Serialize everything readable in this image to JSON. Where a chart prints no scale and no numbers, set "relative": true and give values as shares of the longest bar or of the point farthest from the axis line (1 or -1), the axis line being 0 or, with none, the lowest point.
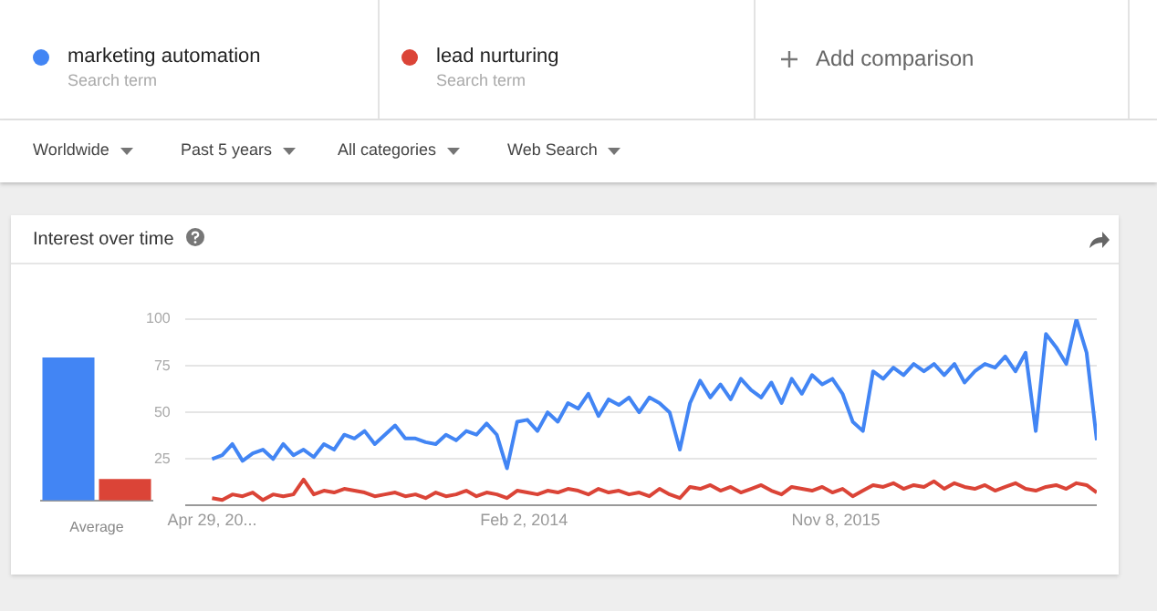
{
  "chart_data": [
    {
      "type": "other",
      "annotations": [
        "Search term",
        "Search term",
        "Add comparison",
        "Worldwide",
        "Past 5 years",
        "All categories",
        "Web Search"
      ]
    },
    {
      "type": "bar",
      "xlabel": "Average",
      "categories": [
        null,
        null
      ],
      "values": [
        1,
        0.15
      ],
      "colors": [
        "#4285f4",
        "#db4437"
      ],
      "relative": true
    },
    {
      "type": "line",
      "title": "Interest over time",
      "legend": "top",
      "grid": "y",
      "marker": "none",
      "line_style": "solid",
      "x": [
        "2012-04-29",
        "2012-05-20",
        "2012-06-10",
        "2012-07-01",
        "2012-07-22",
        "2012-08-12",
        "2012-09-02",
        "2012-09-23",
        "2012-10-14",
        "2012-11-04",
        "2012-11-25",
        "2012-12-16",
        "2013-01-06",
        "2013-01-27",
        "2013-02-17",
        "2013-03-10",
        "2013-03-31",
        "2013-04-21",
        "2013-05-12",
        "2013-06-02",
        "2013-06-23",
        "2013-07-14",
        "2013-08-04",
        "2013-08-25",
        "2013-09-15",
        "2013-10-06",
        "2013-10-27",
        "2013-11-17",
        "2013-12-08",
        "2013-12-29",
        "2014-01-19",
        "2014-02-09",
        "2014-03-02",
        "2014-03-23",
        "2014-04-13",
        "2014-05-04",
        "2014-05-25",
        "2014-06-15",
        "2014-07-06",
        "2014-07-27",
        "2014-08-17",
        "2014-09-07",
        "2014-09-28",
        "2014-10-19",
        "2014-11-09",
        "2014-11-30",
        "2014-12-21",
        "2015-01-11",
        "2015-02-01",
        "2015-02-22",
        "2015-03-15",
        "2015-04-05",
        "2015-04-26",
        "2015-05-17",
        "2015-06-07",
        "2015-06-28",
        "2015-07-19",
        "2015-08-09",
        "2015-08-30",
        "2015-09-20",
        "2015-10-11",
        "2015-11-01",
        "2015-11-22",
        "2015-12-13",
        "2016-01-03",
        "2016-01-24",
        "2016-02-14",
        "2016-03-06",
        "2016-03-27",
        "2016-04-17",
        "2016-05-08",
        "2016-05-29",
        "2016-06-19",
        "2016-07-10",
        "2016-07-31",
        "2016-08-21",
        "2016-09-11",
        "2016-10-02",
        "2016-10-23",
        "2016-11-13",
        "2016-12-04",
        "2016-12-25",
        "2017-01-15",
        "2017-02-05",
        "2017-02-26",
        "2017-03-19",
        "2017-04-09",
        "2017-04-30"
      ],
      "series": [
        {
          "name": "marketing automation",
          "color": "#4285f4",
          "values": [
            25,
            27,
            33,
            24,
            28,
            30,
            25,
            33,
            27,
            30,
            26,
            33,
            30,
            38,
            36,
            40,
            33,
            38,
            43,
            36,
            36,
            34,
            33,
            38,
            35,
            40,
            38,
            44,
            38,
            20,
            45,
            46,
            40,
            50,
            45,
            55,
            52,
            60,
            48,
            57,
            54,
            58,
            50,
            58,
            55,
            50,
            30,
            55,
            67,
            58,
            65,
            57,
            68,
            62,
            58,
            66,
            55,
            68,
            60,
            70,
            65,
            68,
            60,
            45,
            40,
            72,
            68,
            74,
            70,
            76,
            72,
            76,
            70,
            76,
            66,
            72,
            76,
            74,
            80,
            72,
            82,
            40,
            92,
            85,
            76,
            100,
            82,
            35
          ]
        },
        {
          "name": "lead nurturing",
          "color": "#db4437",
          "values": [
            4,
            3,
            6,
            5,
            7,
            3,
            6,
            5,
            6,
            14,
            6,
            8,
            7,
            9,
            8,
            7,
            5,
            6,
            7,
            5,
            6,
            4,
            7,
            5,
            6,
            8,
            5,
            7,
            6,
            4,
            8,
            7,
            6,
            8,
            7,
            9,
            8,
            6,
            9,
            7,
            8,
            6,
            7,
            5,
            9,
            6,
            4,
            10,
            9,
            11,
            8,
            10,
            7,
            9,
            11,
            8,
            6,
            10,
            9,
            8,
            10,
            7,
            9,
            5,
            8,
            11,
            10,
            12,
            9,
            11,
            10,
            13,
            9,
            12,
            10,
            9,
            11,
            8,
            10,
            12,
            9,
            8,
            10,
            11,
            9,
            12,
            11,
            7
          ]
        }
      ],
      "xlim": [
        "2012-03-04",
        "2017-04-30"
      ],
      "xticks": [
        {
          "value": "2012-04-29",
          "label": "Apr 29, 20..."
        },
        {
          "value": "2014-02-02",
          "label": "Feb 2, 2014"
        },
        {
          "value": "2015-11-08",
          "label": "Nov 8, 2015"
        }
      ],
      "ylim": [
        0,
        100
      ],
      "yticks": [
        {
          "value": 0,
          "label": null
        },
        25,
        50,
        75,
        100
      ]
    }
  ]
}
